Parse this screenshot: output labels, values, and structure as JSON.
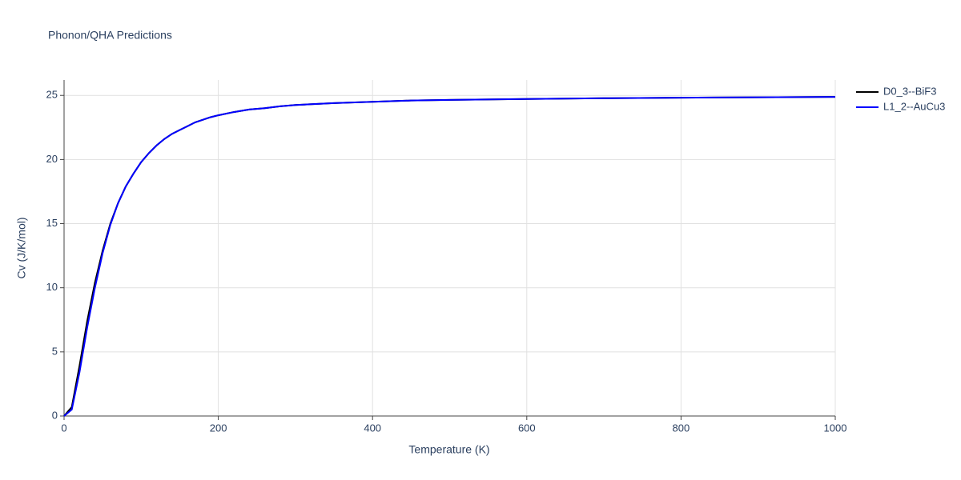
{
  "chart_data": {
    "type": "line",
    "title": "Phonon/QHA Predictions",
    "x_label": "Temperature (K)",
    "y_label": "Cv (J/K/mol)",
    "x": [
      0,
      10,
      20,
      30,
      40,
      50,
      60,
      70,
      80,
      90,
      100,
      110,
      120,
      130,
      140,
      150,
      160,
      170,
      180,
      190,
      200,
      220,
      240,
      260,
      280,
      300,
      350,
      400,
      450,
      500,
      600,
      700,
      800,
      900,
      1000
    ],
    "series": [
      {
        "name": "D0_3--BiF3",
        "color": "#000000",
        "values": [
          0,
          0.7,
          3.9,
          7.4,
          10.4,
          12.9,
          15.0,
          16.6,
          17.9,
          18.9,
          19.8,
          20.5,
          21.1,
          21.6,
          22.0,
          22.3,
          22.6,
          22.9,
          23.1,
          23.3,
          23.45,
          23.7,
          23.9,
          24.0,
          24.15,
          24.25,
          24.4,
          24.5,
          24.6,
          24.65,
          24.72,
          24.78,
          24.82,
          24.85,
          24.88
        ]
      },
      {
        "name": "L1_2--AuCu3",
        "color": "#0000ff",
        "values": [
          0,
          0.5,
          3.4,
          6.9,
          10.0,
          12.7,
          14.9,
          16.6,
          17.9,
          18.9,
          19.8,
          20.5,
          21.1,
          21.6,
          22.0,
          22.3,
          22.6,
          22.9,
          23.1,
          23.3,
          23.45,
          23.7,
          23.9,
          24.0,
          24.15,
          24.25,
          24.4,
          24.5,
          24.6,
          24.65,
          24.72,
          24.78,
          24.82,
          24.85,
          24.88
        ]
      }
    ],
    "xlim": [
      0,
      1000
    ],
    "xticks": [
      0,
      200,
      400,
      600,
      800,
      1000
    ],
    "ylim": [
      0,
      26.2
    ],
    "yticks": [
      0,
      5,
      10,
      15,
      20,
      25
    ],
    "grid": true,
    "legend": "right"
  }
}
